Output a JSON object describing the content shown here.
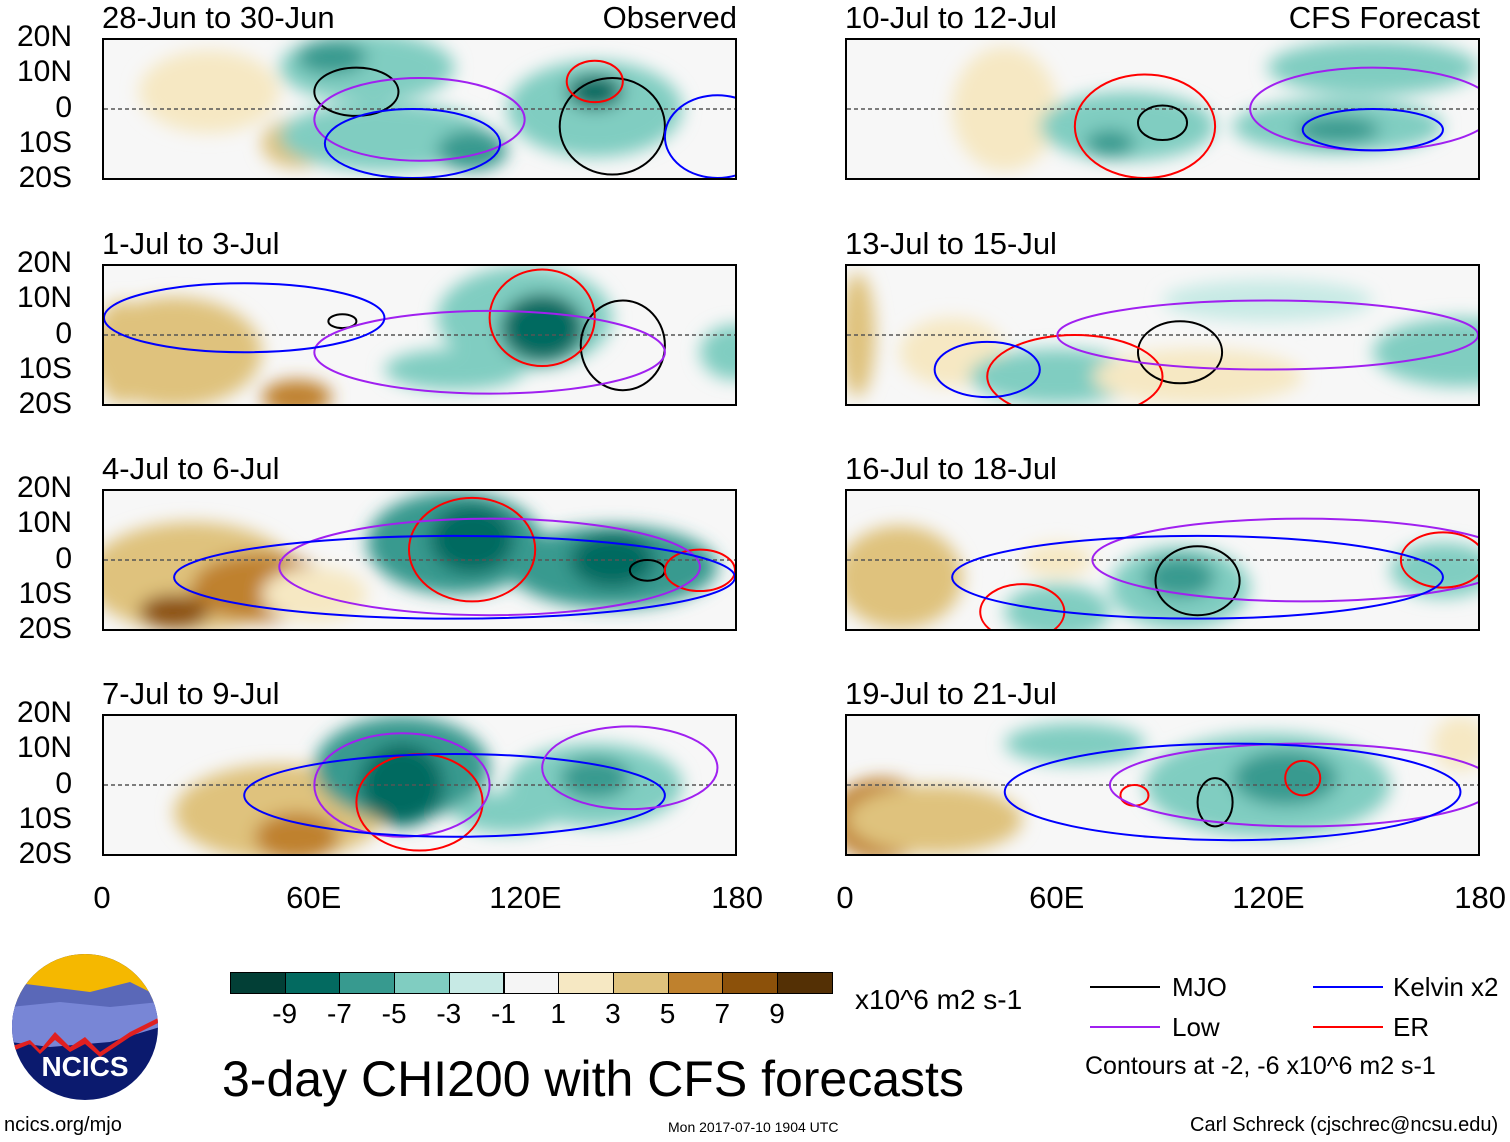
{
  "title": "3-day CHI200 with CFS forecasts",
  "left_header": "Observed",
  "right_header": "CFS Forecast",
  "lat_labels": [
    "20N",
    "10N",
    "0",
    "10S",
    "20S"
  ],
  "lon_labels": [
    "0",
    "60E",
    "120E",
    "180"
  ],
  "colorbar": {
    "colors": [
      "#023f36",
      "#036a60",
      "#379a8f",
      "#80cdc1",
      "#c7eae5",
      "#f5f5f5",
      "#f6e8c3",
      "#dfc27d",
      "#bf812d",
      "#8c510a",
      "#543005"
    ],
    "labels": [
      "-9",
      "-7",
      "-5",
      "-3",
      "-1",
      "1",
      "3",
      "5",
      "7",
      "9"
    ],
    "units": "x10^6 m2 s-1"
  },
  "legend": {
    "mjo": {
      "label": "MJO",
      "color": "#000000"
    },
    "low": {
      "label": "Low",
      "color": "#a020f0"
    },
    "kelvin": {
      "label": "Kelvin x2",
      "color": "#0000ff"
    },
    "er": {
      "label": "ER",
      "color": "#ff0000"
    },
    "note": "Contours at -2, -6 x10^6 m2 s-1"
  },
  "footer": {
    "url": "ncics.org/mjo",
    "timestamp": "Mon 2017-07-10 1904 UTC",
    "credit": "Carl Schreck (cjschrec@ncsu.edu)",
    "logo_text": "NCICS"
  },
  "panels": [
    {
      "title": "28-Jun to 30-Jun",
      "side": "left",
      "blobs": [
        [
          30,
          5,
          20,
          12,
          2
        ],
        [
          55,
          -10,
          10,
          7,
          4
        ],
        [
          75,
          12,
          25,
          10,
          -3
        ],
        [
          80,
          -8,
          30,
          10,
          -3
        ],
        [
          105,
          -12,
          10,
          6,
          -5
        ],
        [
          140,
          0,
          25,
          14,
          -4
        ],
        [
          140,
          5,
          8,
          5,
          -7
        ],
        [
          65,
          15,
          10,
          5,
          -5
        ]
      ],
      "contours": [
        [
          72,
          5,
          12,
          7,
          "mjo"
        ],
        [
          145,
          -5,
          15,
          14,
          "mjo"
        ],
        [
          140,
          8,
          8,
          6,
          "er"
        ],
        [
          90,
          -3,
          30,
          12,
          "low"
        ],
        [
          88,
          -10,
          25,
          10,
          "kelvin"
        ],
        [
          175,
          -8,
          15,
          12,
          "kelvin"
        ]
      ]
    },
    {
      "title": "10-Jul to 12-Jul",
      "side": "right",
      "blobs": [
        [
          45,
          0,
          15,
          18,
          2
        ],
        [
          80,
          -5,
          25,
          10,
          -3
        ],
        [
          75,
          -10,
          7,
          4,
          -5
        ],
        [
          140,
          -5,
          30,
          8,
          -3
        ],
        [
          150,
          12,
          30,
          8,
          -3
        ],
        [
          140,
          -6,
          12,
          4,
          -5
        ]
      ],
      "contours": [
        [
          90,
          -4,
          7,
          5,
          "mjo"
        ],
        [
          85,
          -5,
          20,
          15,
          "er"
        ],
        [
          150,
          0,
          35,
          12,
          "low"
        ],
        [
          150,
          -6,
          20,
          6,
          "kelvin"
        ]
      ]
    },
    {
      "title": "1-Jul to 3-Jul",
      "side": "left",
      "blobs": [
        [
          20,
          -5,
          25,
          16,
          4
        ],
        [
          55,
          -18,
          10,
          5,
          7
        ],
        [
          5,
          -5,
          8,
          15,
          5
        ],
        [
          120,
          5,
          25,
          15,
          -4
        ],
        [
          125,
          2,
          12,
          10,
          -7
        ],
        [
          100,
          -10,
          20,
          6,
          -3
        ],
        [
          180,
          -5,
          10,
          8,
          -3
        ]
      ],
      "contours": [
        [
          148,
          -3,
          12,
          13,
          "mjo"
        ],
        [
          68,
          4,
          4,
          2,
          "mjo"
        ],
        [
          125,
          5,
          15,
          14,
          "er"
        ],
        [
          110,
          -5,
          50,
          12,
          "low"
        ],
        [
          40,
          5,
          40,
          10,
          "kelvin"
        ]
      ]
    },
    {
      "title": "13-Jul to 15-Jul",
      "side": "right",
      "blobs": [
        [
          3,
          0,
          5,
          18,
          5
        ],
        [
          30,
          -5,
          15,
          10,
          2
        ],
        [
          60,
          -12,
          25,
          8,
          -3
        ],
        [
          175,
          -5,
          25,
          10,
          -3
        ],
        [
          100,
          -12,
          30,
          8,
          2
        ],
        [
          120,
          10,
          30,
          6,
          -2
        ]
      ],
      "contours": [
        [
          95,
          -5,
          12,
          9,
          "mjo"
        ],
        [
          65,
          -12,
          25,
          12,
          "er"
        ],
        [
          120,
          0,
          60,
          10,
          "low"
        ],
        [
          40,
          -10,
          15,
          8,
          "kelvin"
        ]
      ]
    },
    {
      "title": "4-Jul to 6-Jul",
      "side": "left",
      "blobs": [
        [
          25,
          -5,
          30,
          16,
          5
        ],
        [
          45,
          -8,
          20,
          10,
          7
        ],
        [
          20,
          -15,
          10,
          5,
          8
        ],
        [
          100,
          5,
          25,
          15,
          -5
        ],
        [
          105,
          6,
          12,
          10,
          -8
        ],
        [
          145,
          -2,
          30,
          12,
          -5
        ],
        [
          145,
          0,
          12,
          8,
          -8
        ],
        [
          60,
          -10,
          15,
          8,
          3
        ]
      ],
      "contours": [
        [
          155,
          -3,
          5,
          3,
          "mjo"
        ],
        [
          105,
          3,
          18,
          15,
          "er"
        ],
        [
          170,
          -3,
          10,
          6,
          "er"
        ],
        [
          110,
          -2,
          60,
          14,
          "low"
        ],
        [
          100,
          -5,
          80,
          12,
          "kelvin"
        ]
      ]
    },
    {
      "title": "16-Jul to 18-Jul",
      "side": "right",
      "blobs": [
        [
          15,
          -5,
          18,
          15,
          4
        ],
        [
          95,
          -8,
          20,
          12,
          -3
        ],
        [
          95,
          -5,
          10,
          6,
          -5
        ],
        [
          170,
          -3,
          15,
          8,
          -4
        ],
        [
          60,
          -15,
          15,
          8,
          -3
        ],
        [
          60,
          0,
          10,
          5,
          2
        ]
      ],
      "contours": [
        [
          100,
          -6,
          12,
          10,
          "mjo"
        ],
        [
          170,
          0,
          12,
          8,
          "er"
        ],
        [
          50,
          -15,
          12,
          8,
          "er"
        ],
        [
          130,
          0,
          60,
          12,
          "low"
        ],
        [
          100,
          -5,
          70,
          12,
          "kelvin"
        ]
      ]
    },
    {
      "title": "7-Jul to 9-Jul",
      "side": "left",
      "blobs": [
        [
          50,
          -8,
          30,
          14,
          4
        ],
        [
          55,
          -15,
          12,
          7,
          7
        ],
        [
          85,
          5,
          25,
          15,
          -5
        ],
        [
          85,
          0,
          12,
          12,
          -8
        ],
        [
          140,
          0,
          25,
          12,
          -4
        ],
        [
          140,
          2,
          10,
          6,
          -6
        ],
        [
          115,
          -8,
          15,
          6,
          -3
        ]
      ],
      "contours": [
        [
          90,
          -5,
          18,
          14,
          "er"
        ],
        [
          85,
          0,
          25,
          15,
          "low"
        ],
        [
          100,
          -3,
          60,
          12,
          "kelvin"
        ],
        [
          150,
          5,
          25,
          12,
          "low"
        ]
      ]
    },
    {
      "title": "19-Jul to 21-Jul",
      "side": "right",
      "blobs": [
        [
          10,
          -10,
          15,
          12,
          6
        ],
        [
          25,
          -10,
          25,
          10,
          4
        ],
        [
          120,
          0,
          35,
          15,
          -4
        ],
        [
          125,
          2,
          15,
          8,
          -6
        ],
        [
          65,
          12,
          20,
          6,
          -3
        ],
        [
          175,
          12,
          8,
          8,
          2
        ]
      ],
      "contours": [
        [
          105,
          -5,
          5,
          7,
          "mjo"
        ],
        [
          130,
          2,
          5,
          5,
          "er"
        ],
        [
          82,
          -3,
          4,
          3,
          "er"
        ],
        [
          130,
          0,
          55,
          12,
          "low"
        ],
        [
          110,
          -2,
          65,
          14,
          "kelvin"
        ]
      ]
    }
  ]
}
